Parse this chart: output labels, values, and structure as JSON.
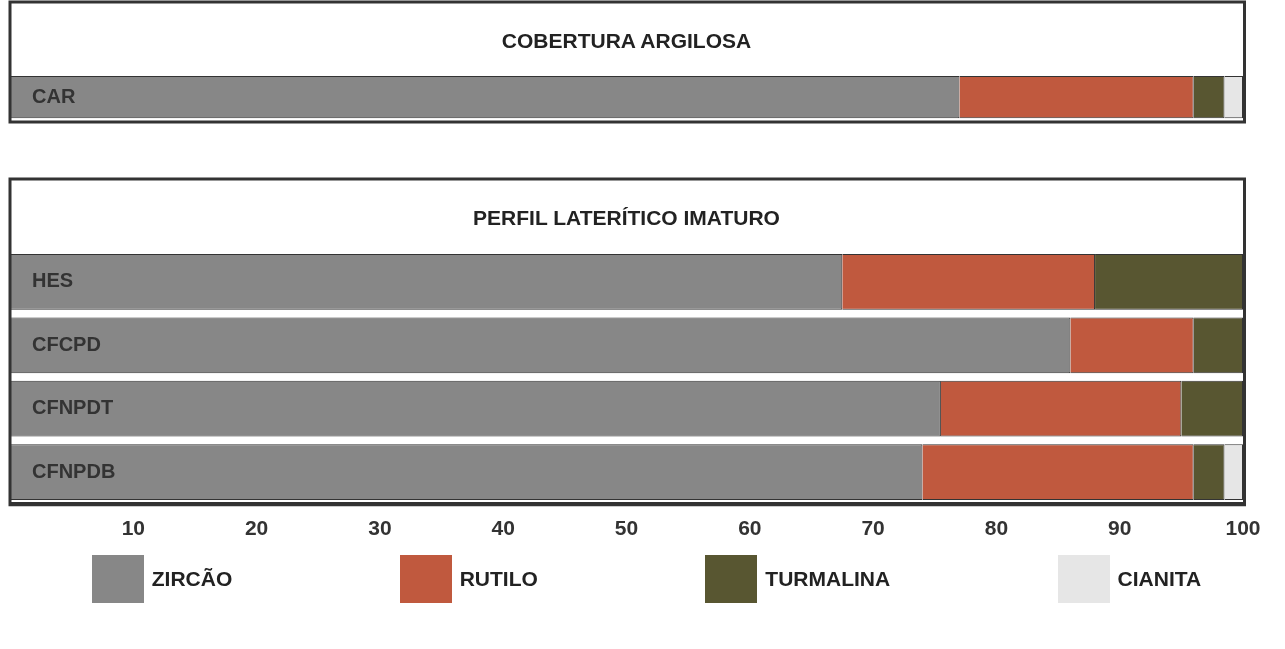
{
  "chart_data": [
    {
      "type": "bar",
      "orientation": "horizontal",
      "stacked": true,
      "title": "COBERTURA ARGILOSA",
      "categories": [
        "CAR"
      ],
      "xlim": [
        0,
        100
      ],
      "tick_labels": "y",
      "grid": false,
      "legend": false,
      "series": [
        {
          "color": "#878787",
          "values": [
            77
          ]
        },
        {
          "color": "#c0593e",
          "values": [
            19
          ]
        },
        {
          "color": "#585631",
          "values": [
            2.5
          ]
        },
        {
          "color": "#e6e6e6",
          "values": [
            1.5
          ]
        }
      ]
    },
    {
      "type": "bar",
      "orientation": "horizontal",
      "stacked": true,
      "title": "PERFIL LATERÍTICO IMATURO",
      "categories": [
        "HES",
        "CFCPD",
        "CFNPDT",
        "CFNPDB"
      ],
      "xlim": [
        0,
        100
      ],
      "xticks": [
        10,
        20,
        30,
        40,
        50,
        60,
        70,
        80,
        90,
        100
      ],
      "grid": false,
      "legend": "bottom",
      "series": [
        {
          "name": "ZIRCÃO",
          "color": "#878787",
          "values": [
            67.5,
            86,
            75.5,
            74
          ]
        },
        {
          "name": "RUTILO",
          "color": "#c0593e",
          "values": [
            20.5,
            10,
            19.5,
            22
          ]
        },
        {
          "name": "TURMALINA",
          "color": "#585631",
          "values": [
            12,
            4,
            5,
            2.5
          ]
        },
        {
          "name": "CIANITA",
          "color": "#e6e6e6",
          "values": [
            null,
            null,
            null,
            1.5
          ]
        }
      ]
    }
  ]
}
